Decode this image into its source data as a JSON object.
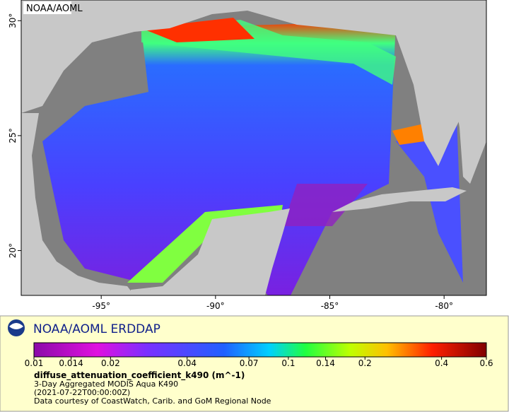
{
  "map": {
    "label": "NOAA/AOML",
    "xlim": [
      -98.5,
      -78.15
    ],
    "ylim": [
      18.05,
      30.9
    ],
    "xticks": [
      {
        "value": -95,
        "label": "-95°"
      },
      {
        "value": -90,
        "label": "-90°"
      },
      {
        "value": -85,
        "label": "-85°"
      },
      {
        "value": -80,
        "label": "-80°"
      }
    ],
    "yticks": [
      {
        "value": 20,
        "label": "20°"
      },
      {
        "value": 25,
        "label": "25°"
      },
      {
        "value": 30,
        "label": "30°"
      }
    ]
  },
  "legend": {
    "title": "NOAA/AOML ERDDAP",
    "colorbar": {
      "scale": "log",
      "lim": [
        0.01,
        0.6
      ],
      "ticks": [
        0.01,
        0.014,
        0.02,
        0.04,
        0.07,
        0.1,
        0.14,
        0.2,
        0.4,
        0.6
      ]
    },
    "variable": "diffuse_attenuation_coefficient_k490 (m^-1)",
    "lines": [
      "3-Day Aggregated MODIS Aqua K490",
      "(2021-07-22T00:00:00Z)",
      "Data courtesy of CoastWatch, Carib. and GoM Regional Node"
    ]
  }
}
